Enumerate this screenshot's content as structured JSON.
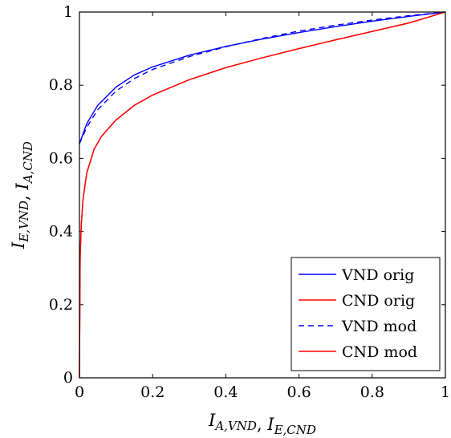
{
  "chart_data": {
    "type": "line",
    "xlabel": "I_{A,VND}, I_{E,CND}",
    "ylabel": "I_{E,VND}, I_{A,CND}",
    "xlim": [
      0,
      1
    ],
    "ylim": [
      0,
      1
    ],
    "x_ticks": [
      "0",
      "0.2",
      "0.4",
      "0.6",
      "0.8",
      "1"
    ],
    "y_ticks": [
      "0",
      "0.2",
      "0.4",
      "0.6",
      "0.8",
      "1"
    ],
    "legend_position": "bottom-right",
    "grid": false,
    "series": [
      {
        "name": "VND orig",
        "color": "#0000ff",
        "dash": "solid",
        "x": [
          0,
          0.02,
          0.05,
          0.1,
          0.15,
          0.2,
          0.3,
          0.4,
          0.5,
          0.6,
          0.7,
          0.8,
          0.9,
          1.0
        ],
        "y": [
          0.64,
          0.695,
          0.745,
          0.795,
          0.828,
          0.85,
          0.882,
          0.906,
          0.926,
          0.944,
          0.96,
          0.975,
          0.988,
          1.0
        ]
      },
      {
        "name": "CND orig",
        "color": "#ff0000",
        "dash": "solid",
        "x": [
          0,
          0.002,
          0.005,
          0.01,
          0.02,
          0.04,
          0.06,
          0.1,
          0.15,
          0.2,
          0.3,
          0.4,
          0.5,
          0.6,
          0.7,
          0.8,
          0.9,
          1.0
        ],
        "y": [
          0,
          0.33,
          0.42,
          0.49,
          0.56,
          0.625,
          0.66,
          0.705,
          0.745,
          0.773,
          0.815,
          0.848,
          0.875,
          0.9,
          0.924,
          0.947,
          0.97,
          1.0
        ]
      },
      {
        "name": "VND mod",
        "color": "#0000ff",
        "dash": "dashed",
        "x": [
          0,
          0.02,
          0.05,
          0.1,
          0.15,
          0.2,
          0.3,
          0.4,
          0.5,
          0.6,
          0.7,
          0.8,
          0.9,
          1.0
        ],
        "y": [
          0.64,
          0.685,
          0.733,
          0.784,
          0.818,
          0.843,
          0.878,
          0.905,
          0.928,
          0.948,
          0.964,
          0.978,
          0.99,
          1.0
        ]
      },
      {
        "name": "CND mod",
        "color": "#ff0000",
        "dash": "solid",
        "x": [
          0,
          0.002,
          0.005,
          0.01,
          0.02,
          0.04,
          0.06,
          0.1,
          0.15,
          0.2,
          0.3,
          0.4,
          0.5,
          0.6,
          0.7,
          0.8,
          0.9,
          1.0
        ],
        "y": [
          0,
          0.33,
          0.42,
          0.49,
          0.56,
          0.625,
          0.66,
          0.705,
          0.745,
          0.773,
          0.815,
          0.848,
          0.875,
          0.9,
          0.924,
          0.947,
          0.97,
          1.0
        ]
      }
    ]
  }
}
